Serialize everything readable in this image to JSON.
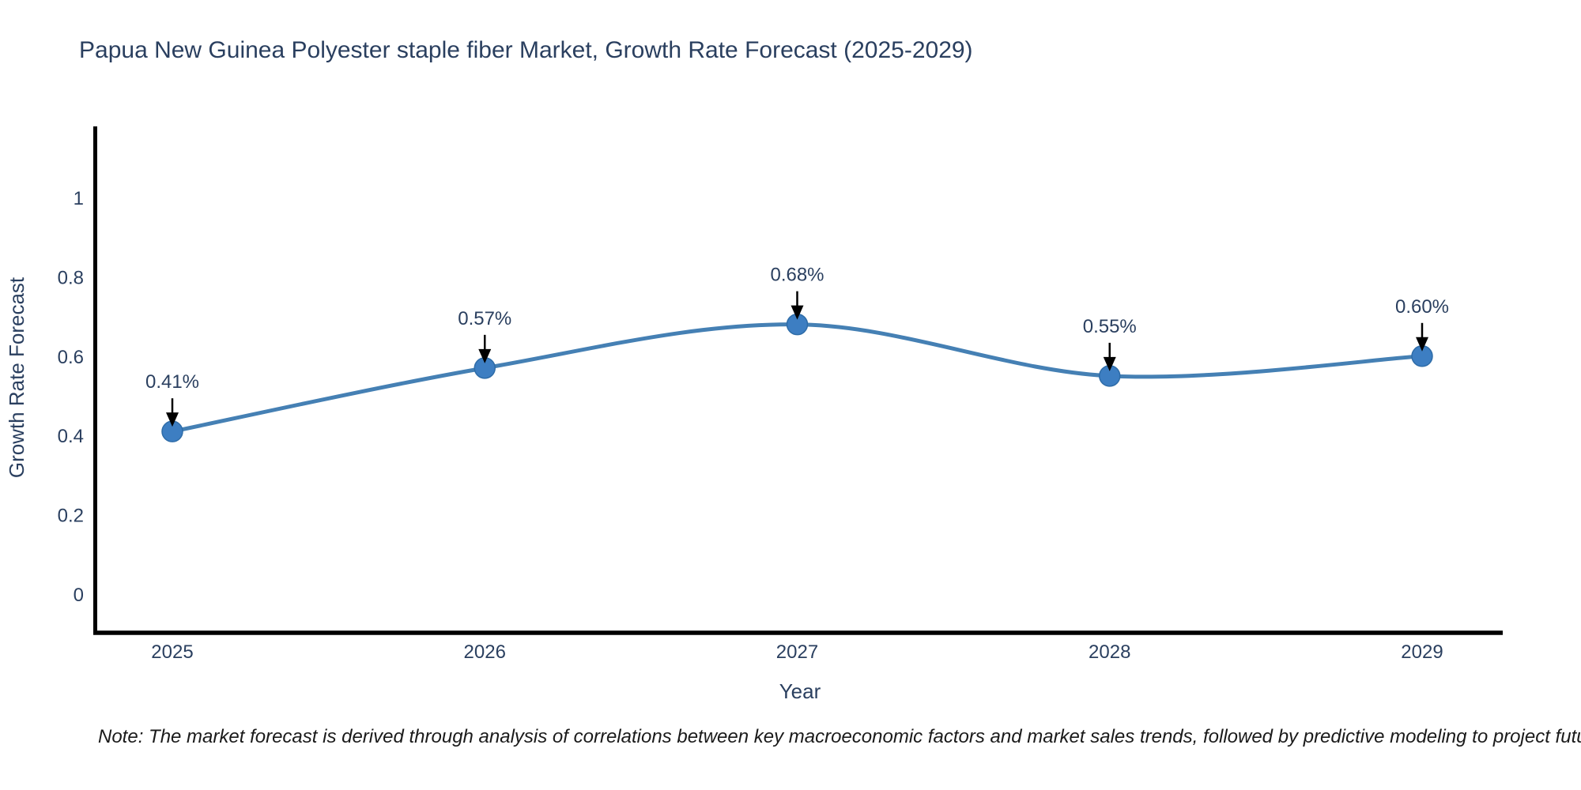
{
  "page": {
    "title": "Papua New Guinea Polyester staple fiber Market, Growth Rate Forecast (2025-2029)",
    "note": "Note: The market forecast is derived through analysis of correlations between key macroeconomic factors and market sales trends, followed by predictive modeling to project future sales"
  },
  "chart_data": {
    "type": "line",
    "title": "Papua New Guinea Polyester staple fiber Market, Growth Rate Forecast (2025-2029)",
    "xlabel": "Year",
    "ylabel": "Growth Rate Forecast",
    "categories": [
      "2025",
      "2026",
      "2027",
      "2028",
      "2029"
    ],
    "values": [
      0.41,
      0.57,
      0.68,
      0.55,
      0.6
    ],
    "point_labels": [
      "0.41%",
      "0.57%",
      "0.68%",
      "0.55%",
      "0.60%"
    ],
    "yticks": [
      0,
      0.2,
      0.4,
      0.6,
      0.8,
      1
    ],
    "ytick_labels": [
      "0",
      "0.2",
      "0.4",
      "0.6",
      "0.8",
      "1"
    ],
    "ylim": [
      -0.1,
      1.18
    ],
    "line_shape": "spline",
    "grid": false,
    "legend": "none",
    "annotations": "value label with downward arrow above each data point",
    "colors": {
      "line": "#4580b4",
      "marker": "#3d7ec2",
      "marker_edge": "#2e6ca8",
      "axis": "#000000",
      "text": "#2a3f5f",
      "arrow": "#000000"
    }
  }
}
